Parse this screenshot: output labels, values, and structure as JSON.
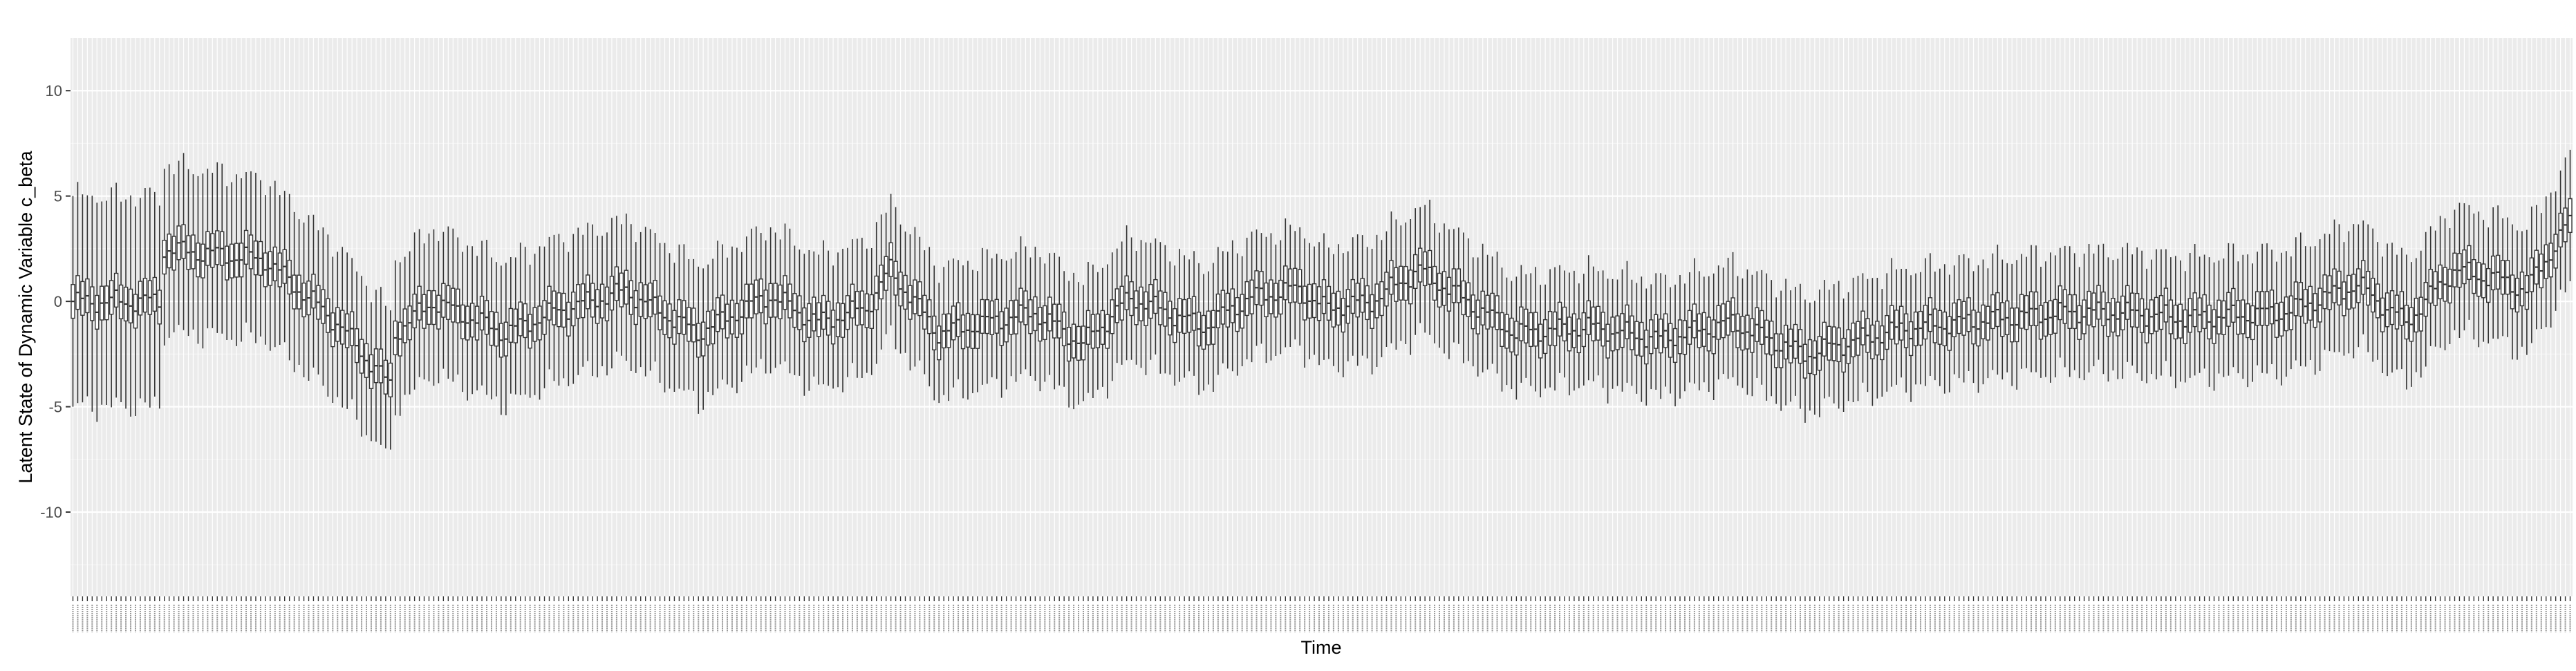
{
  "chart_data": {
    "type": "box",
    "title": "",
    "xlabel": "Time",
    "ylabel": "Latent State of Dynamic Variable c_beta",
    "ylim": [
      -14,
      12.5
    ],
    "yticks": [
      -10,
      -5,
      0,
      5,
      10
    ],
    "x_tick_labels_legible": false,
    "n_time_points": 520,
    "grid": true,
    "colors": {
      "panel_background": "#ebebeb",
      "grid_major": "#ffffff",
      "grid_minor": "#f5f5f5",
      "box_stroke": "#333333",
      "box_fill": "#ffffff",
      "tick_text": "#4d4d4d"
    },
    "median_anchors": {
      "x": [
        0,
        18,
        19,
        40,
        45,
        55,
        66,
        67,
        75,
        90,
        100,
        115,
        130,
        145,
        155,
        165,
        170,
        180,
        200,
        210,
        220,
        235,
        245,
        255,
        260,
        270,
        280,
        300,
        315,
        330,
        345,
        360,
        380,
        405,
        415,
        425,
        440,
        460,
        475,
        485,
        495,
        505,
        510,
        519
      ],
      "median": [
        0,
        0,
        2.5,
        2.0,
        1.0,
        -1.0,
        -4.0,
        -1.5,
        0,
        -1.5,
        -0.5,
        0.5,
        -1.5,
        0.3,
        -1.0,
        -0.3,
        1.5,
        -1.5,
        -0.5,
        -2.0,
        0.2,
        -1.2,
        0.2,
        0.6,
        -0.3,
        0,
        1.5,
        -1.5,
        -1.2,
        -1.8,
        -1.0,
        -2.5,
        -1.3,
        -0.7,
        -0.5,
        -0.5,
        -0.8,
        -0.5,
        0.8,
        -1.0,
        1.5,
        1.0,
        0.5,
        3.8
      ]
    },
    "whisker_half_range_anchors": {
      "x": [
        0,
        18,
        19,
        66,
        67,
        260,
        280,
        300,
        519
      ],
      "half": [
        5,
        5,
        4,
        3.5,
        3.5,
        2.8,
        3,
        2.7,
        3
      ]
    },
    "box_half_height": 0.8
  }
}
